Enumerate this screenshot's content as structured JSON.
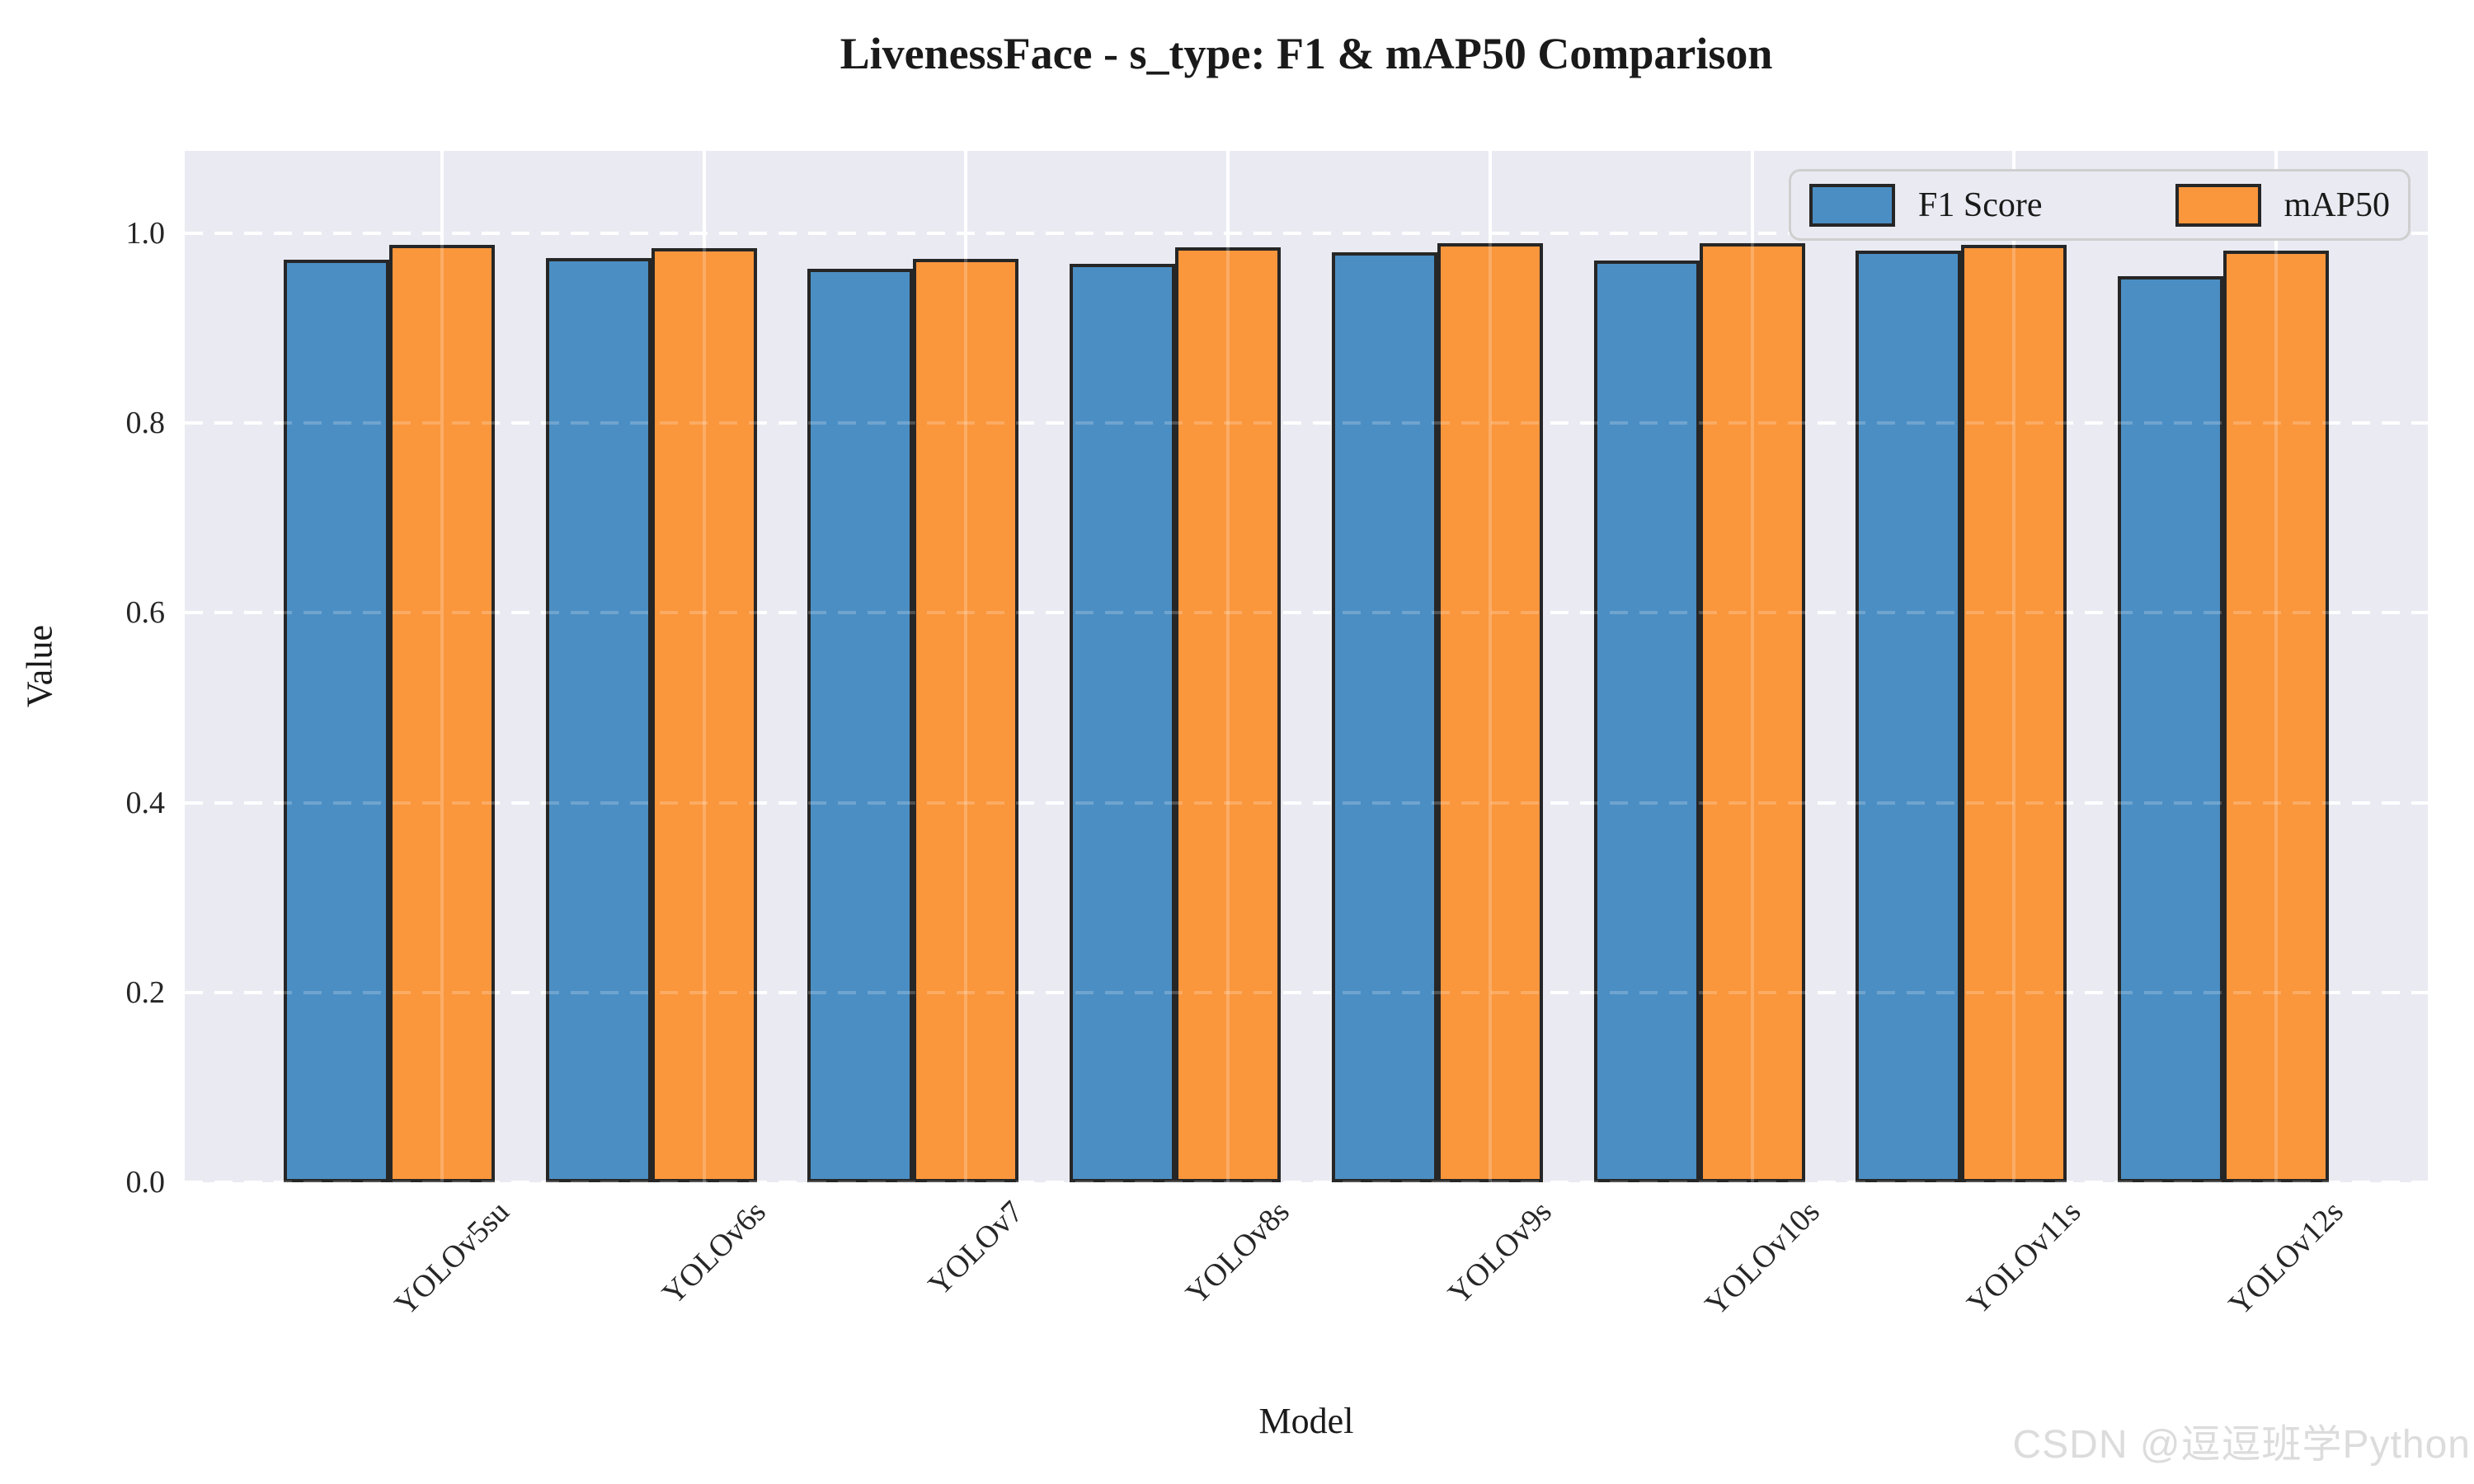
{
  "figure": {
    "title": "LivenessFace - s_type: F1 & mAP50 Comparison",
    "watermark": "CSDN @逗逗班学Python"
  },
  "chart_data": {
    "type": "bar",
    "title": "LivenessFace - s_type: F1 & mAP50 Comparison",
    "xlabel": "Model",
    "ylabel": "Value",
    "categories": [
      "YOLOv5su",
      "YOLOv6s",
      "YOLOv7",
      "YOLOv8s",
      "YOLOv9s",
      "YOLOv10s",
      "YOLOv11s",
      "YOLOv12s"
    ],
    "series": [
      {
        "name": "F1 Score",
        "color": "#4B8EC3",
        "values": [
          0.972,
          0.974,
          0.963,
          0.968,
          0.98,
          0.971,
          0.982,
          0.955
        ]
      },
      {
        "name": "mAP50",
        "color": "#FA963C",
        "values": [
          0.988,
          0.984,
          0.973,
          0.985,
          0.99,
          0.99,
          0.988,
          0.982
        ]
      }
    ],
    "ylim": [
      0,
      1.087
    ],
    "yticks": [
      0.0,
      0.2,
      0.4,
      0.6,
      0.8,
      1.0
    ],
    "ytick_labels": [
      "0.0",
      "0.2",
      "0.4",
      "0.6",
      "0.8",
      "1.0"
    ],
    "grid": {
      "horizontal_style": "dashed",
      "vertical_style": "solid",
      "color": "#FFFFFF",
      "on": true
    },
    "legend": {
      "position": "upper right",
      "entries": [
        "F1 Score",
        "mAP50"
      ]
    },
    "plot_background": "#EAEAF2",
    "figure_background": "#FFFFFF",
    "bar_edge_color": "#262626"
  }
}
